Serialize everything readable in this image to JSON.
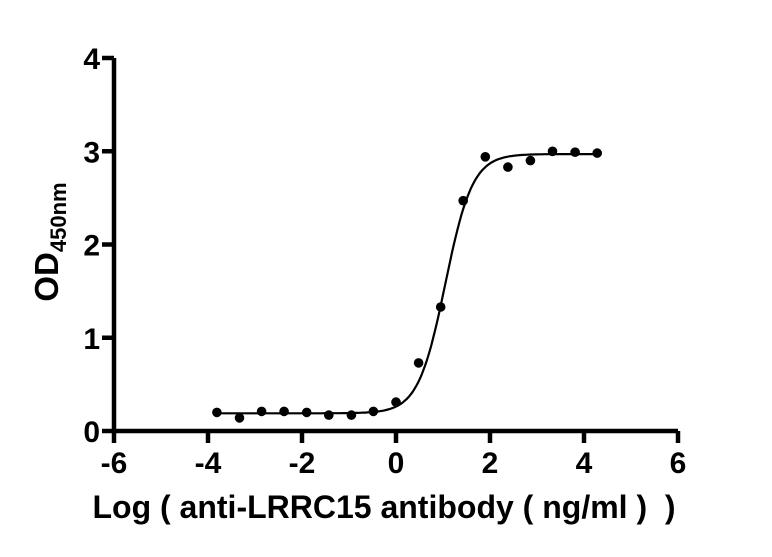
{
  "chart_data": {
    "type": "scatter",
    "subtype": "sigmoidal-dose-response-fit",
    "title": "",
    "xlabel": "Log ( anti-LRRC15 antibody ( ng/ml )  )",
    "ylabel": "OD",
    "ylabel_subscript": "450nm",
    "xlim": [
      -6,
      6
    ],
    "ylim": [
      0,
      4
    ],
    "grid": false,
    "legend": null,
    "x_ticks": [
      "-6",
      "-4",
      "-2",
      "0",
      "2",
      "4",
      "6"
    ],
    "x_tick_values": [
      -6,
      -4,
      -2,
      0,
      2,
      4,
      6
    ],
    "y_ticks": [
      "0",
      "1",
      "2",
      "3",
      "4"
    ],
    "y_tick_values": [
      0,
      1,
      2,
      3,
      4
    ],
    "points": {
      "x": [
        -3.81,
        -3.33,
        -2.86,
        -2.38,
        -1.9,
        -1.43,
        -0.95,
        -0.48,
        0.0,
        0.48,
        0.95,
        1.43,
        1.9,
        2.38,
        2.86,
        3.33,
        3.81,
        4.28
      ],
      "y": [
        0.2,
        0.14,
        0.21,
        0.21,
        0.2,
        0.17,
        0.17,
        0.21,
        0.31,
        0.73,
        1.33,
        2.47,
        2.94,
        2.83,
        2.9,
        3.0,
        2.99,
        2.98
      ]
    },
    "fit_curve": {
      "model": "4PL",
      "bottom": 0.19,
      "top": 2.97,
      "logEC50": 1.05,
      "hill_slope": 1.5,
      "x_start": -3.81,
      "x_end": 4.28
    },
    "colors": {
      "background": "#ffffff",
      "axis": "#000000",
      "points": "#000000",
      "curve": "#000000",
      "text": "#000000"
    }
  }
}
